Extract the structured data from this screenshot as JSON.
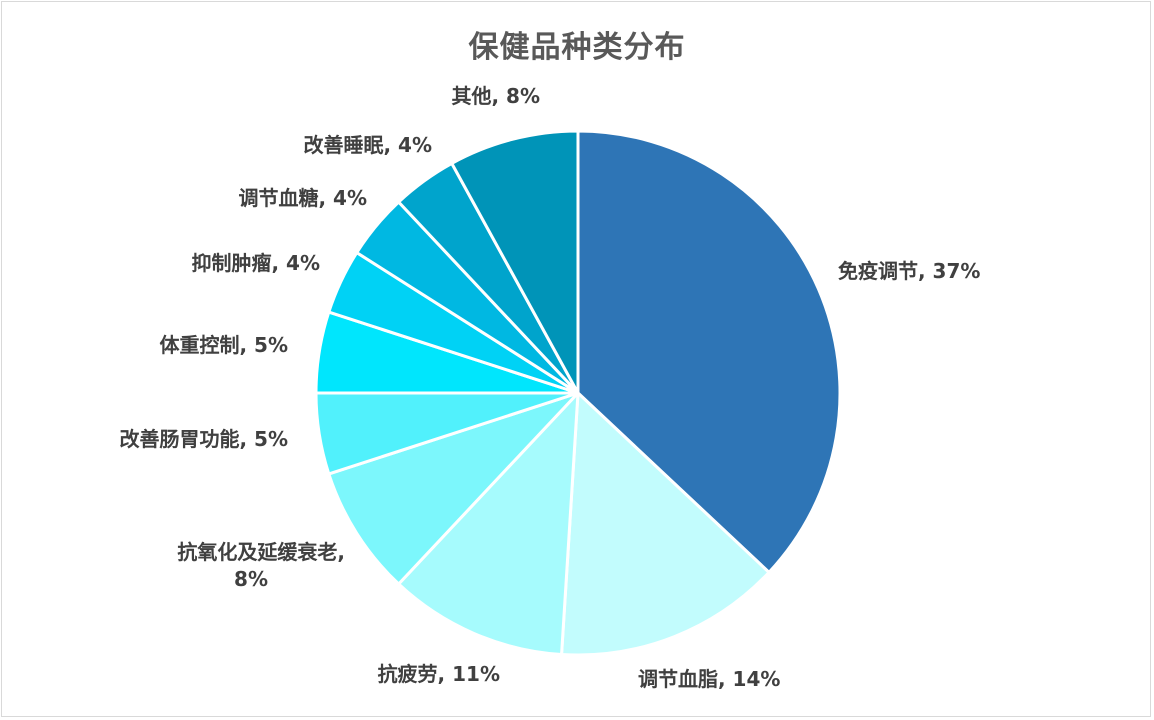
{
  "chart_data": {
    "type": "pie",
    "title": "保健品种类分布",
    "categories": [
      "免疫调节",
      "调节血脂",
      "抗疲劳",
      "抗氧化及延缓衰老",
      "改善肠胃功能",
      "体重控制",
      "抑制肿瘤",
      "调节血糖",
      "改善睡眠",
      "其他"
    ],
    "values": [
      37,
      14,
      11,
      8,
      5,
      5,
      4,
      4,
      4,
      8
    ],
    "labels": [
      [
        "免疫调节, 37%"
      ],
      [
        "调节血脂, 14%"
      ],
      [
        "抗疲劳, 11%"
      ],
      [
        "抗氧化及延缓衰老,",
        "8%"
      ],
      [
        "改善肠胃功能, 5%"
      ],
      [
        "体重控制, 5%"
      ],
      [
        "抑制肿瘤, 4%"
      ],
      [
        "调节血糖, 4%"
      ],
      [
        "改善睡眠, 4%"
      ],
      [
        "其他, 8%"
      ]
    ],
    "colors": [
      "#2e75b6",
      "#c2fcfd",
      "#a6fbfd",
      "#7cf7fc",
      "#51f1fc",
      "#00e6fd",
      "#00d2f5",
      "#00b8e2",
      "#00a4cc",
      "#0094b8"
    ],
    "start_angle": "12 o'clock",
    "direction": "clockwise",
    "legend": "none"
  }
}
